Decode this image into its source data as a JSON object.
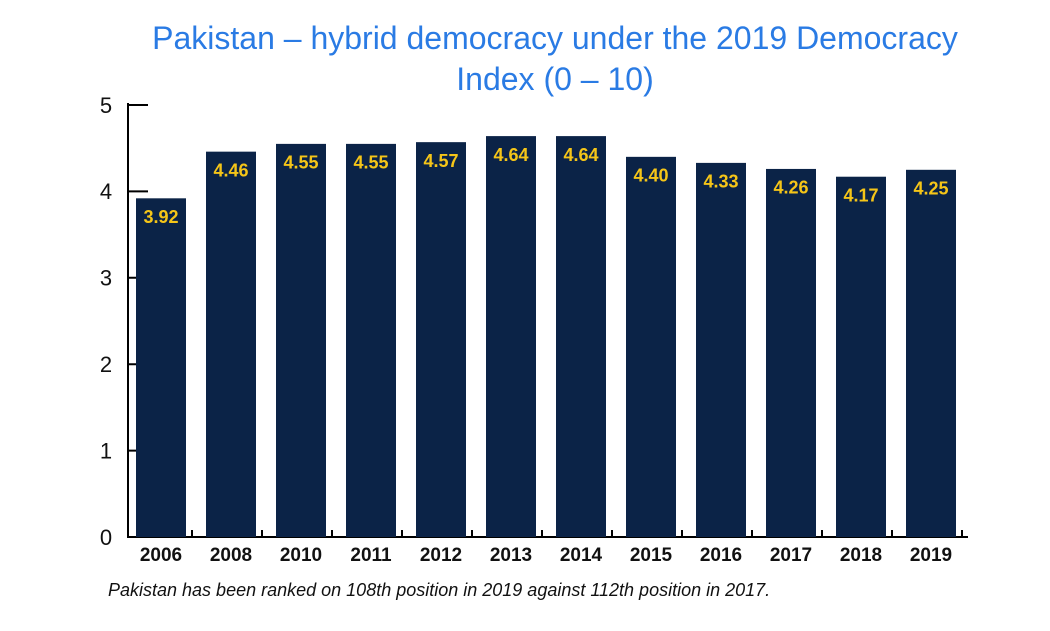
{
  "chart_data": {
    "type": "bar",
    "title": "Pakistan – hybrid democracy under the 2019 Democracy Index (0 – 10)",
    "categories": [
      "2006",
      "2008",
      "2010",
      "2011",
      "2012",
      "2013",
      "2014",
      "2015",
      "2016",
      "2017",
      "2018",
      "2019"
    ],
    "values": [
      3.92,
      4.46,
      4.55,
      4.55,
      4.57,
      4.64,
      4.64,
      4.4,
      4.33,
      4.26,
      4.17,
      4.25
    ],
    "value_labels": [
      "3.92",
      "4.46",
      "4.55",
      "4.55",
      "4.57",
      "4.64",
      "4.64",
      "4.40",
      "4.33",
      "4.26",
      "4.17",
      "4.25"
    ],
    "color": "#0b2347",
    "label_color": "#f5c518",
    "ylim": [
      0,
      5
    ],
    "yticks": [
      0,
      1,
      2,
      3,
      4,
      5
    ],
    "grid": false,
    "note": "Pakistan has been ranked on 108th position in 2019 against 112th position in 2017."
  }
}
